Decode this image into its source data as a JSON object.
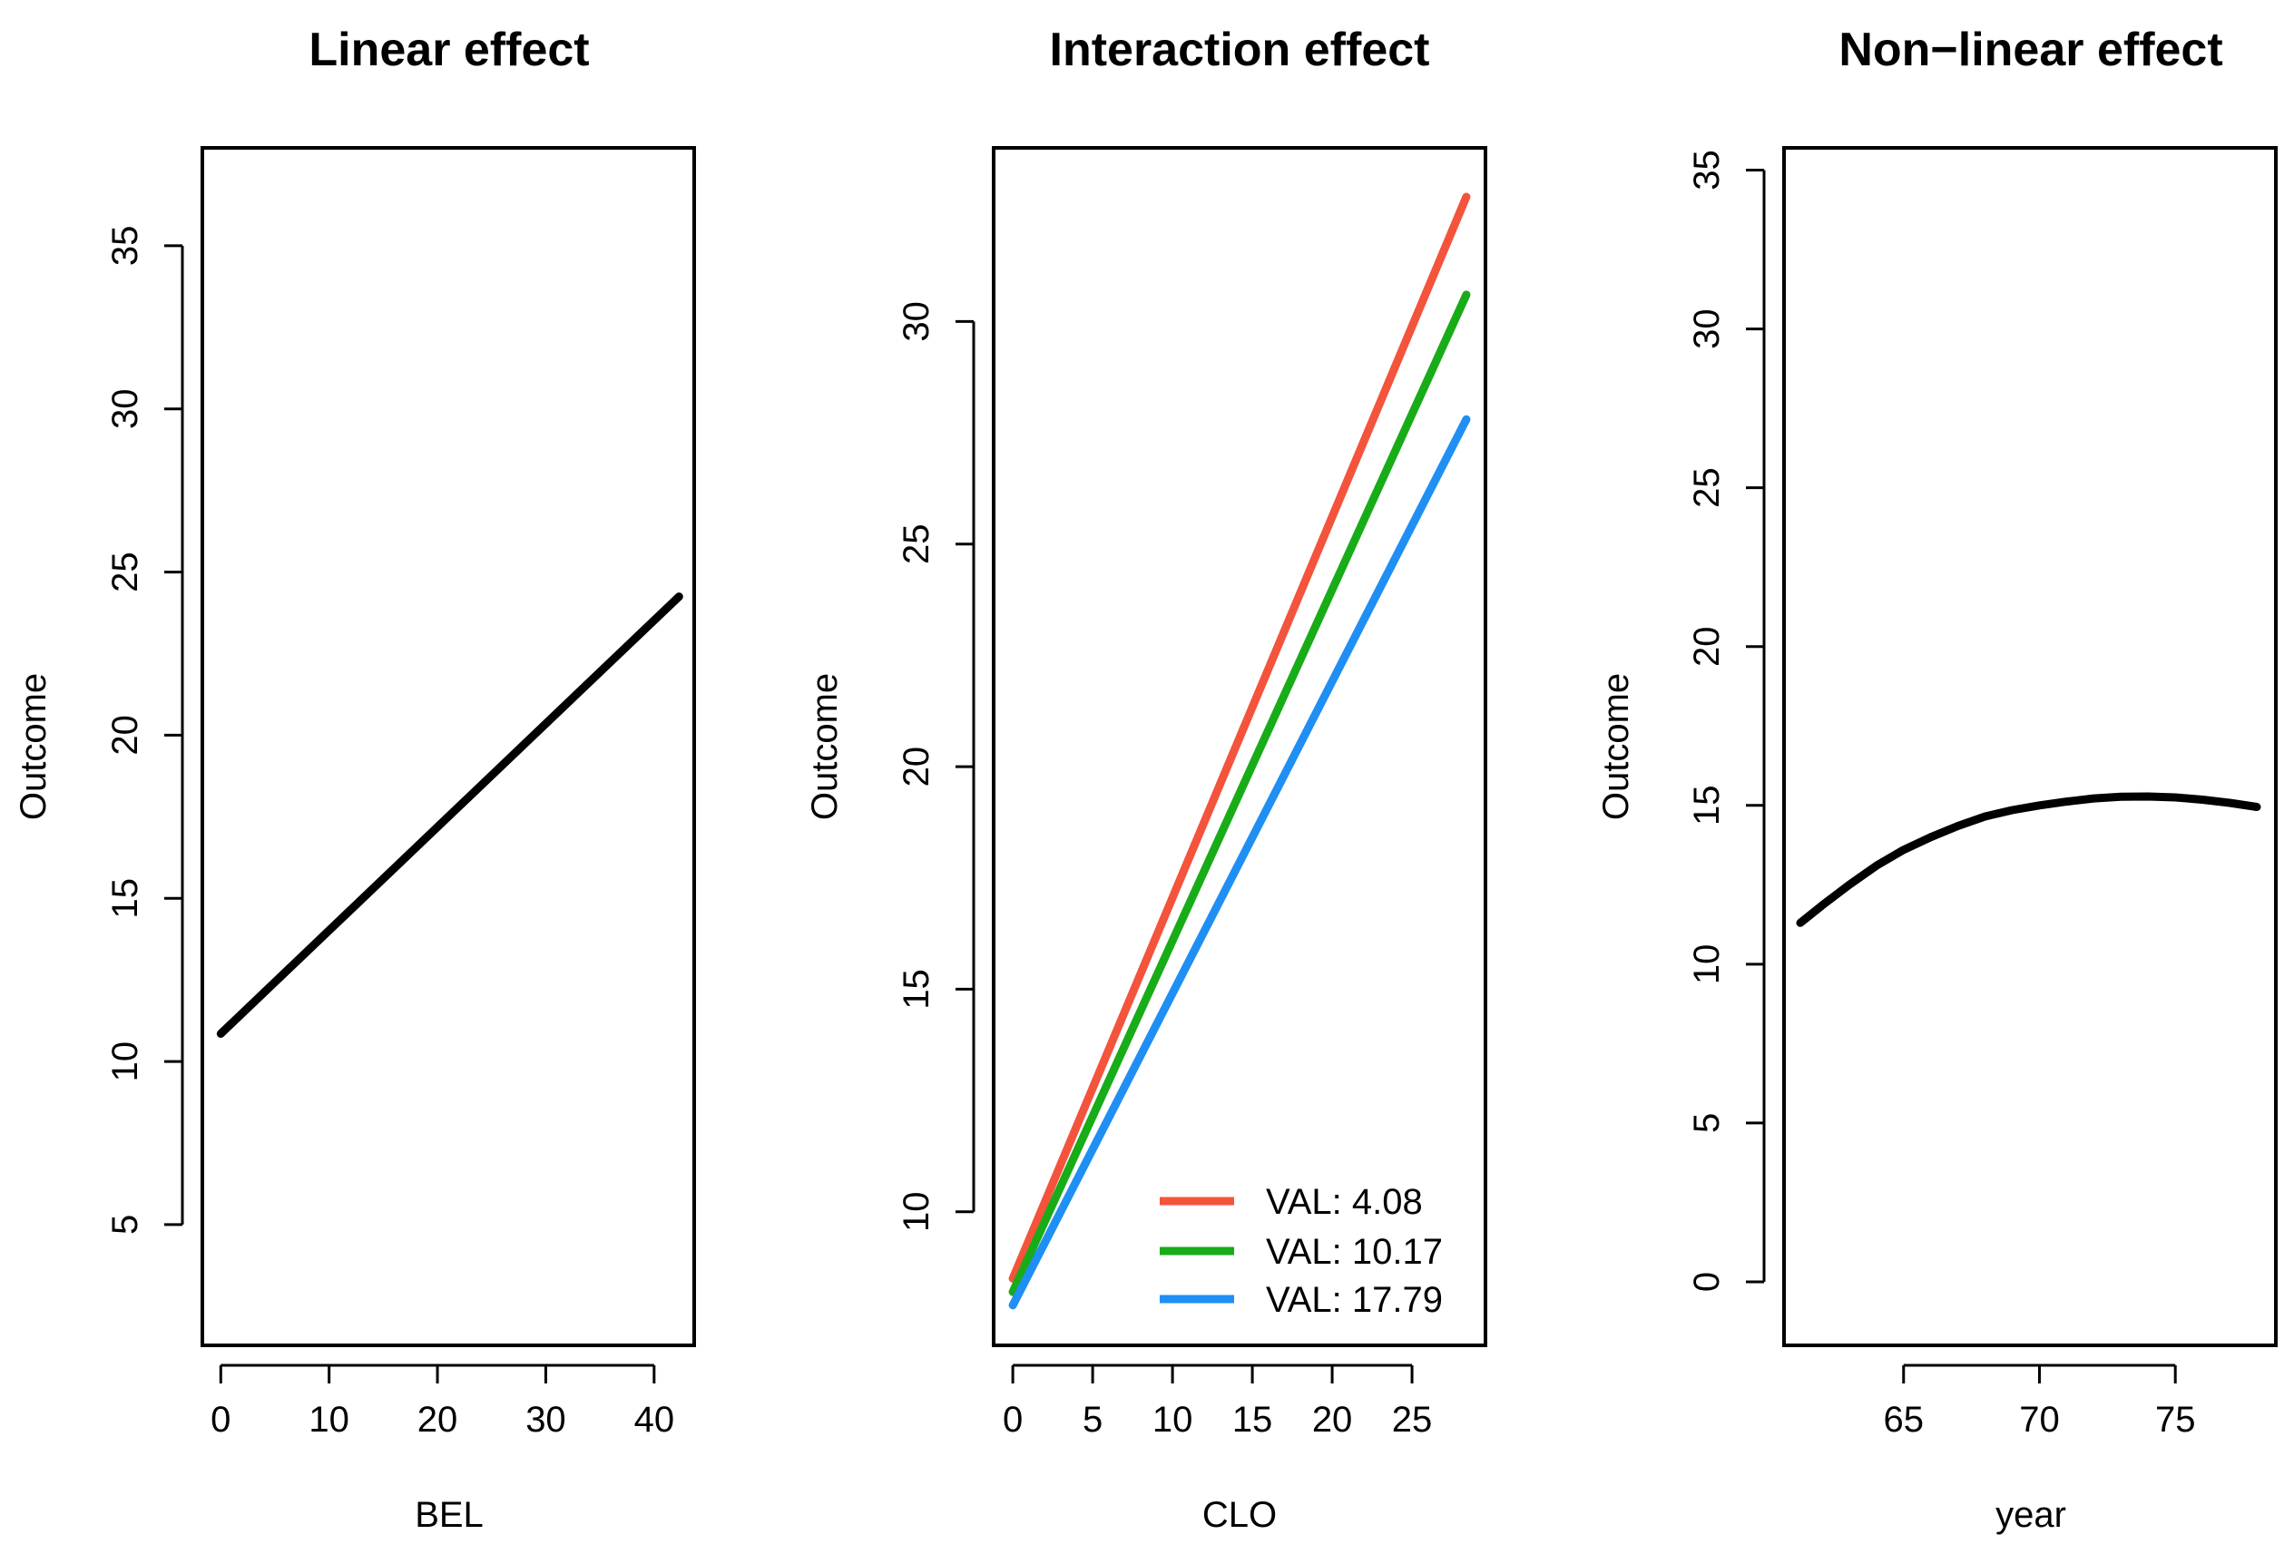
{
  "chart_data": [
    {
      "type": "line",
      "title": "Linear effect",
      "xlabel": "BEL",
      "ylabel": "Outcome",
      "xlim": [
        -1.7,
        43.7
      ],
      "ylim": [
        1.3,
        38.0
      ],
      "xticks": [
        0,
        10,
        20,
        30,
        40
      ],
      "yticks": [
        5,
        10,
        15,
        20,
        25,
        30,
        35
      ],
      "series": [
        {
          "name": "Outcome",
          "color": "#000000",
          "x": [
            0,
            42.3
          ],
          "y": [
            10.85,
            24.25
          ]
        }
      ]
    },
    {
      "type": "line",
      "title": "Interaction effect",
      "xlabel": "CLO",
      "ylabel": "Outcome",
      "xlim": [
        -1.2,
        29.6
      ],
      "ylim": [
        7.0,
        33.9
      ],
      "xticks": [
        0,
        5,
        10,
        15,
        20,
        25
      ],
      "yticks": [
        10,
        15,
        20,
        25,
        30
      ],
      "legend": {
        "position": "bottom-right"
      },
      "series": [
        {
          "name": "VAL: 4.08",
          "color": "#F4533C",
          "x": [
            0,
            28.4
          ],
          "y": [
            8.5,
            32.8
          ]
        },
        {
          "name": "VAL: 10.17",
          "color": "#18AC18",
          "x": [
            0,
            28.4
          ],
          "y": [
            8.2,
            30.6
          ]
        },
        {
          "name": "VAL: 17.79",
          "color": "#1F8FF4",
          "x": [
            0,
            28.4
          ],
          "y": [
            7.9,
            27.8
          ]
        }
      ]
    },
    {
      "type": "line",
      "title": "Non−linear effect",
      "xlabel": "year",
      "ylabel": "Outcome",
      "xlim": [
        60.6,
        78.7
      ],
      "ylim": [
        -2.0,
        35.7
      ],
      "xticks": [
        65,
        70,
        75
      ],
      "yticks": [
        0,
        5,
        10,
        15,
        20,
        25,
        30,
        35
      ],
      "series": [
        {
          "name": "Outcome",
          "color": "#000000",
          "x": [
            61.2,
            62,
            63,
            64,
            65,
            66,
            67,
            68,
            69,
            70,
            71,
            72,
            73,
            74,
            75,
            76,
            77,
            78
          ],
          "y": [
            11.3,
            11.85,
            12.5,
            13.1,
            13.6,
            14.0,
            14.35,
            14.65,
            14.85,
            15.0,
            15.12,
            15.22,
            15.27,
            15.28,
            15.25,
            15.18,
            15.08,
            14.95
          ]
        }
      ]
    }
  ]
}
